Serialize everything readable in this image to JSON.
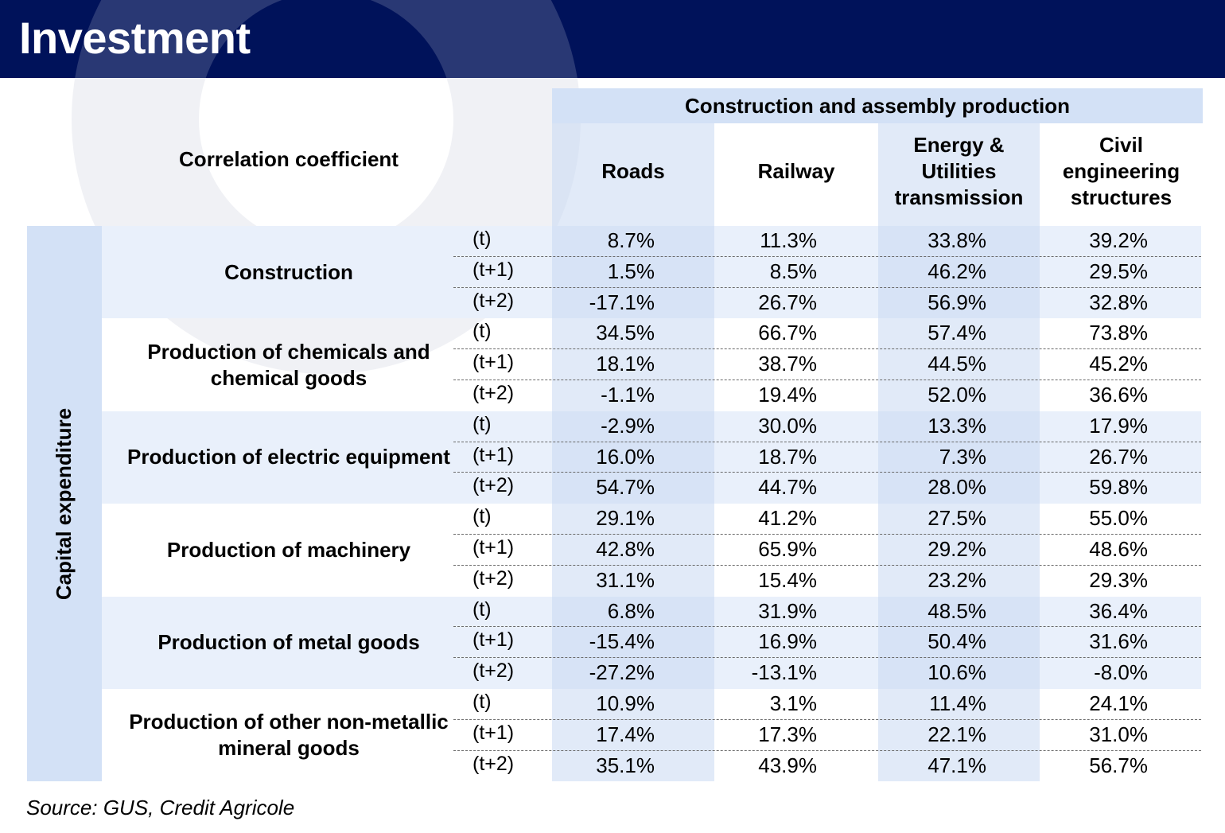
{
  "title": "Investment",
  "table": {
    "corner_label": "Correlation coefficient",
    "group_header": "Construction and assembly production",
    "columns": [
      "Roads",
      "Railway",
      "Energy & Utilities transmission",
      "Civil engineering structures"
    ],
    "row_axis_label": "Capital expenditure",
    "lag_labels": [
      "(t)",
      "(t+1)",
      "(t+2)"
    ],
    "groups": [
      {
        "name": "Construction",
        "rows": [
          [
            "8.7%",
            "11.3%",
            "33.8%",
            "39.2%"
          ],
          [
            "1.5%",
            "8.5%",
            "46.2%",
            "29.5%"
          ],
          [
            "-17.1%",
            "26.7%",
            "56.9%",
            "32.8%"
          ]
        ]
      },
      {
        "name": "Production of chemicals and chemical goods",
        "rows": [
          [
            "34.5%",
            "66.7%",
            "57.4%",
            "73.8%"
          ],
          [
            "18.1%",
            "38.7%",
            "44.5%",
            "45.2%"
          ],
          [
            "-1.1%",
            "19.4%",
            "52.0%",
            "36.6%"
          ]
        ]
      },
      {
        "name": "Production of electric equipment",
        "rows": [
          [
            "-2.9%",
            "30.0%",
            "13.3%",
            "17.9%"
          ],
          [
            "16.0%",
            "18.7%",
            "7.3%",
            "26.7%"
          ],
          [
            "54.7%",
            "44.7%",
            "28.0%",
            "59.8%"
          ]
        ]
      },
      {
        "name": "Production of machinery",
        "rows": [
          [
            "29.1%",
            "41.2%",
            "27.5%",
            "55.0%"
          ],
          [
            "42.8%",
            "65.9%",
            "29.2%",
            "48.6%"
          ],
          [
            "31.1%",
            "15.4%",
            "23.2%",
            "29.3%"
          ]
        ]
      },
      {
        "name": "Production of metal goods",
        "rows": [
          [
            "6.8%",
            "31.9%",
            "48.5%",
            "36.4%"
          ],
          [
            "-15.4%",
            "16.9%",
            "50.4%",
            "31.6%"
          ],
          [
            "-27.2%",
            "-13.1%",
            "10.6%",
            "-8.0%"
          ]
        ]
      },
      {
        "name": "Production of other non-metallic mineral goods",
        "rows": [
          [
            "10.9%",
            "3.1%",
            "11.4%",
            "24.1%"
          ],
          [
            "17.4%",
            "17.3%",
            "22.1%",
            "31.0%"
          ],
          [
            "35.1%",
            "43.9%",
            "47.1%",
            "56.7%"
          ]
        ]
      }
    ]
  },
  "source": "Source: GUS, Credit Agricole"
}
